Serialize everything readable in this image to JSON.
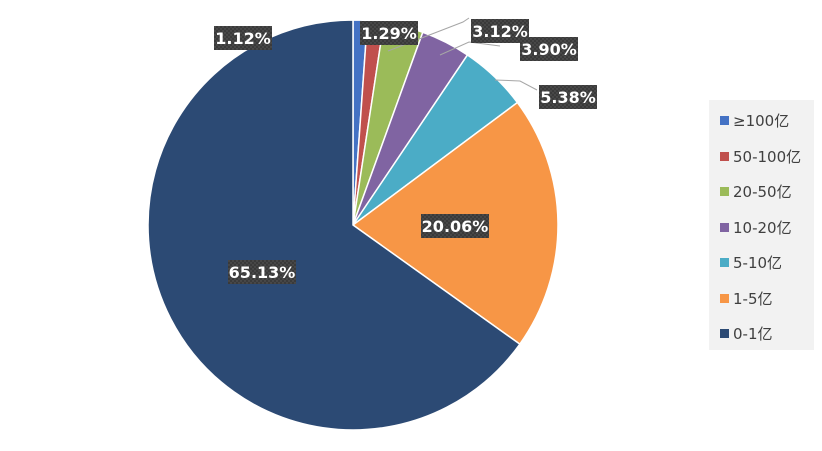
{
  "chart_data": {
    "type": "pie",
    "categories": [
      "≥100亿",
      "50-100亿",
      "20-50亿",
      "10-20亿",
      "5-10亿",
      "1-5亿",
      "0-1亿"
    ],
    "values": [
      1.12,
      1.29,
      3.12,
      3.9,
      5.38,
      20.06,
      65.13
    ],
    "labels": [
      "1.12%",
      "1.29%",
      "3.12%",
      "3.90%",
      "5.38%",
      "20.06%",
      "65.13%"
    ],
    "colors": [
      "#4472c4",
      "#c0504d",
      "#9bbb59",
      "#8064a2",
      "#4bacc6",
      "#f79646",
      "#2c4a74"
    ],
    "legend": "right",
    "title": ""
  }
}
